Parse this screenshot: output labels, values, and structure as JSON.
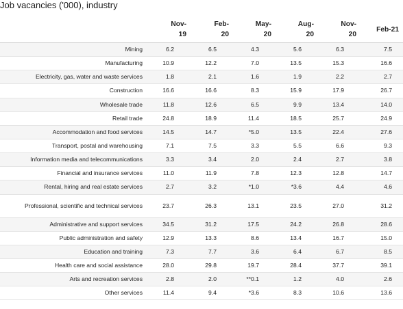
{
  "title": "Job vacancies ('000), industry",
  "columns": [
    {
      "line1": "Nov-",
      "line2": "19"
    },
    {
      "line1": "Feb-",
      "line2": "20"
    },
    {
      "line1": "May-",
      "line2": "20"
    },
    {
      "line1": "Aug-",
      "line2": "20"
    },
    {
      "line1": "Nov-",
      "line2": "20"
    },
    {
      "line1": "Feb-21",
      "line2": ""
    }
  ],
  "rows": [
    {
      "industry": "Mining",
      "values": [
        "6.2",
        "6.5",
        "4.3",
        "5.6",
        "6.3",
        "7.5"
      ]
    },
    {
      "industry": "Manufacturing",
      "values": [
        "10.9",
        "12.2",
        "7.0",
        "13.5",
        "15.3",
        "16.6"
      ]
    },
    {
      "industry": "Electricity, gas, water and waste services",
      "values": [
        "1.8",
        "2.1",
        "1.6",
        "1.9",
        "2.2",
        "2.7"
      ]
    },
    {
      "industry": "Construction",
      "values": [
        "16.6",
        "16.6",
        "8.3",
        "15.9",
        "17.9",
        "26.7"
      ]
    },
    {
      "industry": "Wholesale trade",
      "values": [
        "11.8",
        "12.6",
        "6.5",
        "9.9",
        "13.4",
        "14.0"
      ]
    },
    {
      "industry": "Retail trade",
      "values": [
        "24.8",
        "18.9",
        "11.4",
        "18.5",
        "25.7",
        "24.9"
      ]
    },
    {
      "industry": "Accommodation and food services",
      "values": [
        "14.5",
        "14.7",
        "*5.0",
        "13.5",
        "22.4",
        "27.6"
      ]
    },
    {
      "industry": "Transport, postal and warehousing",
      "values": [
        "7.1",
        "7.5",
        "3.3",
        "5.5",
        "6.6",
        "9.3"
      ]
    },
    {
      "industry": "Information media and telecommunications",
      "values": [
        "3.3",
        "3.4",
        "2.0",
        "2.4",
        "2.7",
        "3.8"
      ]
    },
    {
      "industry": "Financial and insurance services",
      "values": [
        "11.0",
        "11.9",
        "7.8",
        "12.3",
        "12.8",
        "14.7"
      ]
    },
    {
      "industry": "Rental, hiring and real estate services",
      "values": [
        "2.7",
        "3.2",
        "*1.0",
        "*3.6",
        "4.4",
        "4.6"
      ]
    },
    {
      "industry": "Professional, scientific and technical services",
      "values": [
        "23.7",
        "26.3",
        "13.1",
        "23.5",
        "27.0",
        "31.2"
      ]
    },
    {
      "industry": "Administrative and support services",
      "values": [
        "34.5",
        "31.2",
        "17.5",
        "24.2",
        "26.8",
        "28.6"
      ]
    },
    {
      "industry": "Public administration and safety",
      "values": [
        "12.9",
        "13.3",
        "8.6",
        "13.4",
        "16.7",
        "15.0"
      ]
    },
    {
      "industry": "Education and training",
      "values": [
        "7.3",
        "7.7",
        "3.6",
        "6.4",
        "6.7",
        "8.5"
      ]
    },
    {
      "industry": "Health care and social assistance",
      "values": [
        "28.0",
        "29.8",
        "19.7",
        "28.4",
        "37.7",
        "39.1"
      ]
    },
    {
      "industry": "Arts and recreation services",
      "values": [
        "2.8",
        "2.0",
        "**0.1",
        "1.2",
        "4.0",
        "2.6"
      ]
    },
    {
      "industry": "Other services",
      "values": [
        "11.4",
        "9.4",
        "*3.6",
        "8.3",
        "10.6",
        "13.6"
      ]
    }
  ]
}
